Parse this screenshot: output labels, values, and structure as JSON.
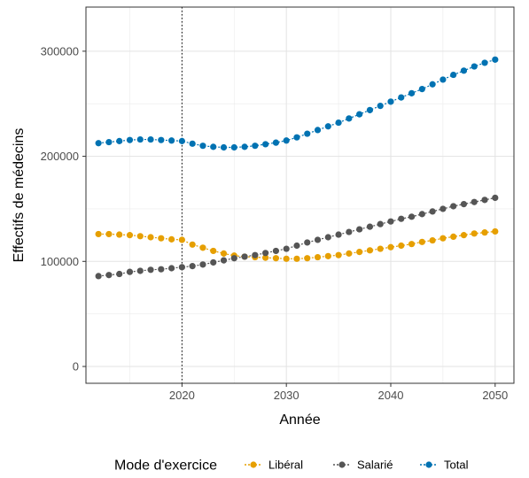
{
  "chart_data": {
    "type": "line",
    "title": "",
    "xlabel": "Année",
    "ylabel": "Effectifs de médecins",
    "xlim": [
      2010.8,
      2051.8
    ],
    "ylim": [
      -16000,
      342000
    ],
    "x_ticks": [
      2020,
      2030,
      2040,
      2050
    ],
    "x_tick_labels": [
      "2020",
      "2030",
      "2040",
      "2050"
    ],
    "y_ticks": [
      0,
      100000,
      200000,
      300000
    ],
    "y_tick_labels": [
      "0",
      "100000",
      "200000",
      "300000"
    ],
    "vline_x": 2020,
    "grid": true,
    "legend_position": "bottom",
    "legend_title": "Mode d'exercice",
    "x": [
      2012,
      2013,
      2014,
      2015,
      2016,
      2017,
      2018,
      2019,
      2020,
      2021,
      2022,
      2023,
      2024,
      2025,
      2026,
      2027,
      2028,
      2029,
      2030,
      2031,
      2032,
      2033,
      2034,
      2035,
      2036,
      2037,
      2038,
      2039,
      2040,
      2041,
      2042,
      2043,
      2044,
      2045,
      2046,
      2047,
      2048,
      2049,
      2050
    ],
    "series": [
      {
        "name": "Libéral",
        "color": "#E69F00",
        "values": [
          126000,
          126000,
          125500,
          125000,
          124000,
          123000,
          122000,
          121000,
          120500,
          116000,
          113000,
          110000,
          107500,
          105500,
          104500,
          104000,
          103500,
          103000,
          102500,
          102500,
          103000,
          104000,
          105000,
          106000,
          107500,
          109000,
          110500,
          112000,
          113500,
          115000,
          116500,
          118500,
          120000,
          122000,
          123500,
          125000,
          126500,
          127500,
          128500
        ]
      },
      {
        "name": "Salarié",
        "color": "#555555",
        "values": [
          86000,
          87000,
          88000,
          90000,
          91000,
          92000,
          92500,
          93500,
          94500,
          95500,
          97000,
          99000,
          101000,
          103000,
          104500,
          106000,
          108000,
          110000,
          112000,
          115000,
          118000,
          120500,
          123000,
          125500,
          128000,
          130500,
          133000,
          135500,
          138000,
          140500,
          142500,
          145000,
          147500,
          150000,
          152500,
          154500,
          156500,
          158500,
          160500
        ]
      },
      {
        "name": "Total",
        "color": "#0072B2",
        "values": [
          212500,
          213500,
          214500,
          215500,
          216000,
          216000,
          215500,
          215000,
          214500,
          212000,
          210000,
          209000,
          208500,
          208500,
          209000,
          210000,
          211500,
          213000,
          215000,
          218000,
          221500,
          225000,
          228500,
          232000,
          236000,
          240000,
          244000,
          248000,
          252000,
          256000,
          260000,
          264000,
          268500,
          273000,
          277500,
          281500,
          285500,
          289000,
          292000
        ]
      }
    ]
  }
}
